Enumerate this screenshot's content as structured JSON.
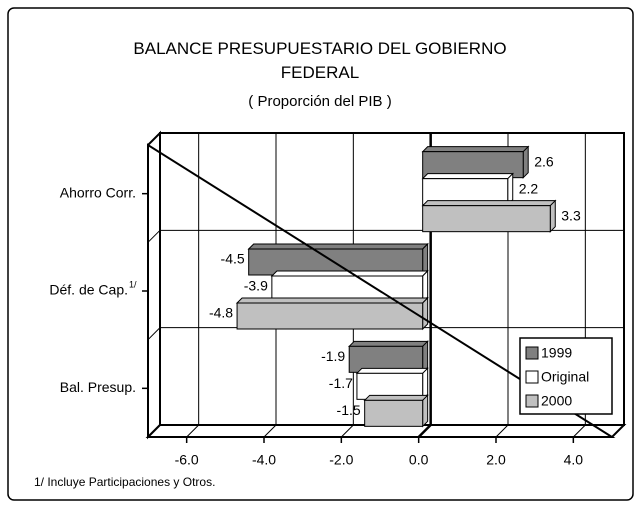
{
  "chart_data": {
    "type": "bar",
    "orientation": "horizontal",
    "title": "BALANCE PRESUPUESTARIO DEL GOBIERNO FEDERAL",
    "subtitle": "( Proporción del PIB )",
    "categories": [
      "Ahorro Corr.",
      "Déf. de Cap.",
      "Bal. Presup."
    ],
    "category_superscripts": [
      null,
      "1/",
      null
    ],
    "series": [
      {
        "name": "1999",
        "color": "#808080",
        "values": [
          2.6,
          -4.5,
          -1.9
        ]
      },
      {
        "name": "Original",
        "color": "#ffffff",
        "values": [
          2.2,
          -3.9,
          -1.7
        ]
      },
      {
        "name": "2000",
        "color": "#c0c0c0",
        "values": [
          3.3,
          -4.8,
          -1.5
        ]
      }
    ],
    "xlim": [
      -7,
      5
    ],
    "xticks": [
      {
        "value": -6,
        "label": "-6.0"
      },
      {
        "value": -4,
        "label": "-4.0"
      },
      {
        "value": -2,
        "label": "-2.0"
      },
      {
        "value": 0,
        "label": "0.0"
      },
      {
        "value": 2,
        "label": "2.0"
      },
      {
        "value": 4,
        "label": "4.0"
      }
    ],
    "grid": true,
    "legend": "lower right",
    "footnote": "1/ Incluye Participaciones y Otros."
  }
}
